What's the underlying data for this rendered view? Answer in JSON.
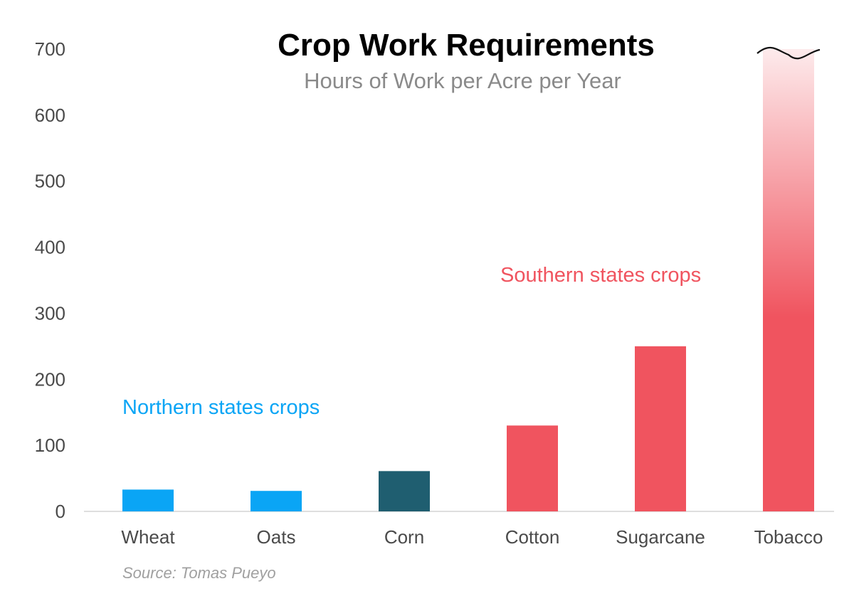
{
  "chart_data": {
    "type": "bar",
    "title": "Crop Work Requirements",
    "subtitle": "Hours of Work per Acre per Year",
    "categories": [
      "Wheat",
      "Oats",
      "Corn",
      "Cotton",
      "Sugarcane",
      "Tobacco"
    ],
    "values": [
      33,
      31,
      61,
      130,
      250,
      700
    ],
    "ylim": [
      0,
      700
    ],
    "yticks": [
      "0",
      "100",
      "200",
      "300",
      "400",
      "500",
      "600",
      "700"
    ],
    "ytick_values": [
      0,
      100,
      200,
      300,
      400,
      500,
      600,
      700
    ],
    "grid": false,
    "truncated_category": "Tobacco",
    "bar_colors": [
      "#0aa5f5",
      "#0aa5f5",
      "#1f5e70",
      "#f0545f",
      "#f0545f",
      "#f0545f"
    ],
    "annotations": [
      {
        "text": "Northern states crops",
        "color": "#0aa5f5"
      },
      {
        "text": "Southern states crops",
        "color": "#f0545f"
      }
    ],
    "source": "Source: Tomas Pueyo"
  }
}
